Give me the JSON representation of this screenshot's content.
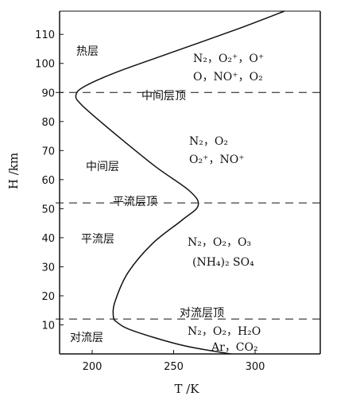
{
  "chart_data": {
    "type": "line",
    "xlabel": "T /K",
    "ylabel": "H /km",
    "xlim": [
      180,
      340
    ],
    "ylim": [
      0,
      118
    ],
    "x_ticks": [
      200,
      250,
      300
    ],
    "y_ticks": [
      10,
      20,
      30,
      40,
      50,
      60,
      70,
      80,
      90,
      100,
      110
    ],
    "series": [
      {
        "points": [
          [
            285,
            0
          ],
          [
            255,
            3
          ],
          [
            225,
            8
          ],
          [
            215,
            11
          ],
          [
            213,
            13
          ],
          [
            214,
            18
          ],
          [
            222,
            28
          ],
          [
            237,
            38
          ],
          [
            255,
            46
          ],
          [
            265,
            51
          ],
          [
            260,
            56
          ],
          [
            240,
            64
          ],
          [
            220,
            73
          ],
          [
            205,
            80
          ],
          [
            193,
            86
          ],
          [
            190,
            89
          ],
          [
            195,
            92
          ],
          [
            215,
            97
          ],
          [
            250,
            104
          ],
          [
            290,
            112
          ],
          [
            318,
            118
          ]
        ]
      }
    ],
    "boundaries": [
      {
        "value": 90,
        "label": "中间层顶"
      },
      {
        "value": 52,
        "label": "平流层顶"
      },
      {
        "value": 12,
        "label": "对流层顶"
      }
    ],
    "layers": [
      {
        "label": "热层"
      },
      {
        "label": "中间层"
      },
      {
        "label": "平流层"
      },
      {
        "label": "对流层"
      }
    ],
    "composition": {
      "thermosphere": [
        "N₂，O₂⁺，O⁺",
        "O，NO⁺，O₂"
      ],
      "mesosphere": [
        "N₂，O₂",
        "O₂⁺，NO⁺"
      ],
      "stratosphere": [
        "N₂，O₂，O₃",
        "(NH₄)₂ SO₄"
      ],
      "troposphere": [
        "N₂，O₂，H₂O",
        "Ar，CO₂"
      ]
    }
  }
}
